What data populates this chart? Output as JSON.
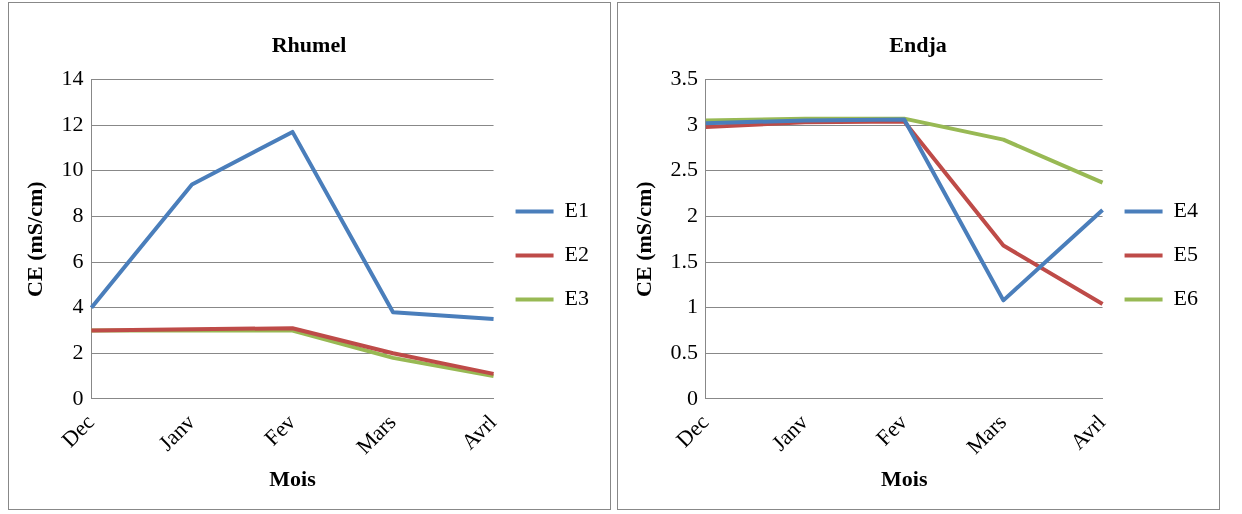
{
  "chart_data": [
    {
      "type": "line",
      "title": "Rhumel",
      "xlabel": "Mois",
      "ylabel": "CE (mS/cm)",
      "categories": [
        "Dec",
        "Janv",
        "Fev",
        "Mars",
        "Avrl"
      ],
      "ylim": [
        0,
        14
      ],
      "yticks": [
        0,
        2,
        4,
        6,
        8,
        10,
        12,
        14
      ],
      "grid": "y",
      "legend": "right",
      "marker": "none",
      "line_style": "solid",
      "series": [
        {
          "name": "E1",
          "color": "#4a7ebb",
          "values": [
            4,
            9.4,
            11.7,
            3.8,
            3.5
          ]
        },
        {
          "name": "E2",
          "color": "#be4b48",
          "values": [
            3,
            3.05,
            3.1,
            2,
            1.1
          ]
        },
        {
          "name": "E3",
          "color": "#98b954",
          "values": [
            3,
            3,
            3,
            1.8,
            1
          ]
        }
      ]
    },
    {
      "type": "line",
      "title": "Endja",
      "xlabel": "Mois",
      "ylabel": "CE (mS/cm)",
      "categories": [
        "Dec",
        "Janv",
        "Fev",
        "Mars",
        "Avrl"
      ],
      "ylim": [
        0,
        3.5
      ],
      "yticks": [
        0,
        0.5,
        1,
        1.5,
        2,
        2.5,
        3,
        3.5
      ],
      "grid": "y",
      "legend": "right",
      "marker": "none",
      "line_style": "solid",
      "series": [
        {
          "name": "E4",
          "color": "#4a7ebb",
          "values": [
            3.02,
            3.05,
            3.06,
            1.08,
            2.07
          ]
        },
        {
          "name": "E5",
          "color": "#be4b48",
          "values": [
            2.98,
            3.03,
            3.04,
            1.68,
            1.04
          ]
        },
        {
          "name": "E6",
          "color": "#98b954",
          "values": [
            3.05,
            3.07,
            3.07,
            2.84,
            2.37
          ]
        }
      ]
    }
  ]
}
